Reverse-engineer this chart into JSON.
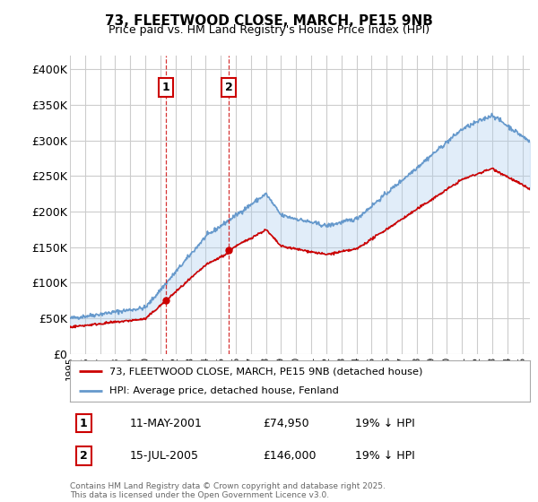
{
  "title": "73, FLEETWOOD CLOSE, MARCH, PE15 9NB",
  "subtitle": "Price paid vs. HM Land Registry's House Price Index (HPI)",
  "ylabel_ticks": [
    "£0",
    "£50K",
    "£100K",
    "£150K",
    "£200K",
    "£250K",
    "£300K",
    "£350K",
    "£400K"
  ],
  "ytick_values": [
    0,
    50000,
    100000,
    150000,
    200000,
    250000,
    300000,
    350000,
    400000
  ],
  "ylim": [
    0,
    420000
  ],
  "xlim_start": 1995.0,
  "xlim_end": 2025.5,
  "purchases": [
    {
      "label": "1",
      "date_year": 2001.36,
      "price": 74950
    },
    {
      "label": "2",
      "date_year": 2005.54,
      "price": 146000
    }
  ],
  "purchase_annotations": [
    {
      "label": "1",
      "date": "11-MAY-2001",
      "price": "£74,950",
      "hpi_note": "19% ↓ HPI"
    },
    {
      "label": "2",
      "date": "15-JUL-2005",
      "price": "£146,000",
      "hpi_note": "19% ↓ HPI"
    }
  ],
  "legend_line1": "73, FLEETWOOD CLOSE, MARCH, PE15 9NB (detached house)",
  "legend_line2": "HPI: Average price, detached house, Fenland",
  "footer": "Contains HM Land Registry data © Crown copyright and database right 2025.\nThis data is licensed under the Open Government Licence v3.0.",
  "line_color_red": "#cc0000",
  "line_color_blue": "#6699cc",
  "shade_color": "#aaccee",
  "bg_color": "#ffffff",
  "grid_color": "#cccccc",
  "vline_color_dashed": "#cc0000"
}
